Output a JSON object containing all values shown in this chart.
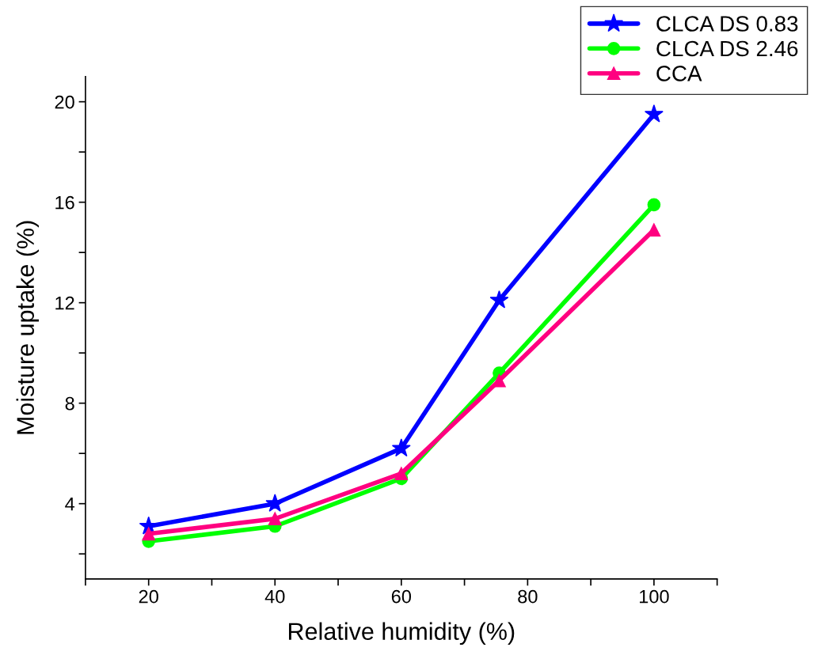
{
  "chart_data": {
    "type": "line",
    "xlabel": "Relative humidity (%)",
    "ylabel": "Moisture uptake (%)",
    "x": [
      20,
      40,
      60,
      75.5,
      100
    ],
    "series": [
      {
        "name": "CLCA DS 0.83",
        "color": "#0000ff",
        "marker": "star",
        "values": [
          3.1,
          4.0,
          6.2,
          12.1,
          19.5
        ]
      },
      {
        "name": "CLCA DS 2.46",
        "color": "#00ff00",
        "marker": "circle",
        "values": [
          2.5,
          3.1,
          5.0,
          9.2,
          15.9
        ]
      },
      {
        "name": "CCA",
        "color": "#ff0080",
        "marker": "triangle",
        "values": [
          2.8,
          3.4,
          5.2,
          8.9,
          14.9
        ]
      }
    ],
    "xlim": [
      10,
      110
    ],
    "xticks": [
      {
        "value": 10,
        "label": null
      },
      20,
      {
        "value": 30,
        "label": null
      },
      40,
      {
        "value": 50,
        "label": null
      },
      60,
      {
        "value": 70,
        "label": null
      },
      80,
      {
        "value": 90,
        "label": null
      },
      100,
      {
        "value": 110,
        "label": null
      }
    ],
    "ylim": [
      1,
      21
    ],
    "yticks": [
      {
        "value": 2,
        "label": null
      },
      4,
      {
        "value": 6,
        "label": null
      },
      8,
      {
        "value": 10,
        "label": null
      },
      12,
      {
        "value": 14,
        "label": null
      },
      16,
      {
        "value": 18,
        "label": null
      },
      20
    ],
    "grid": false,
    "legend": "top right",
    "line_style": "solid"
  }
}
